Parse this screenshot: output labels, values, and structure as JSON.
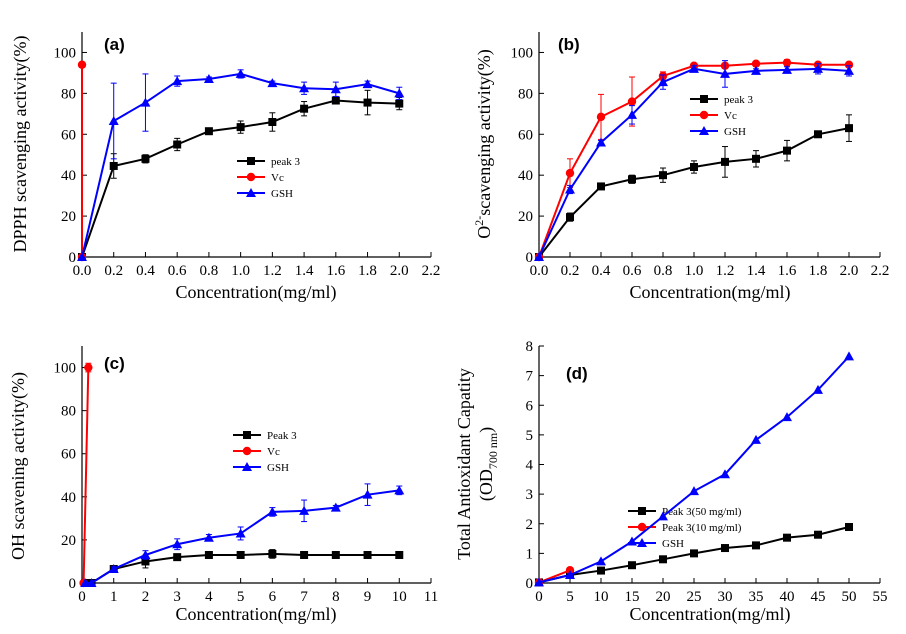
{
  "colors": {
    "peak3": "#000000",
    "vc": "#ff0000",
    "gsh": "#0000ff"
  },
  "chart_data": [
    {
      "panel": "(a)",
      "type": "line",
      "xlabel": "Concentration(mg/ml)",
      "ylabel": "DPPH scavenging activity(%)",
      "xlim": [
        0,
        2.2
      ],
      "ylim": [
        0,
        110
      ],
      "xticks": [
        "0.0",
        "0.2",
        "0.4",
        "0.6",
        "0.8",
        "1.0",
        "1.2",
        "1.4",
        "1.6",
        "1.8",
        "2.0",
        "2.2"
      ],
      "yticks": [
        "0",
        "20",
        "40",
        "60",
        "80",
        "100"
      ],
      "legend_position": "center",
      "series": [
        {
          "name": "peak 3",
          "color": "#000000",
          "marker": "square",
          "x": [
            0,
            0.2,
            0.4,
            0.6,
            0.8,
            1.0,
            1.2,
            1.4,
            1.6,
            1.8,
            2.0
          ],
          "y": [
            0,
            44.5,
            48,
            55,
            61.5,
            63.5,
            66,
            72.5,
            76.5,
            75.5,
            75
          ],
          "err": [
            0,
            6,
            2,
            3,
            1,
            3,
            4.5,
            3.5,
            1.5,
            6,
            3
          ]
        },
        {
          "name": "Vc",
          "color": "#ff0000",
          "marker": "circle",
          "x": [
            0,
            0
          ],
          "y": [
            0,
            94
          ],
          "err": [
            0,
            0
          ]
        },
        {
          "name": "GSH",
          "color": "#0000ff",
          "marker": "triangle",
          "x": [
            0,
            0.2,
            0.4,
            0.6,
            0.8,
            1.0,
            1.2,
            1.4,
            1.6,
            1.8,
            2.0
          ],
          "y": [
            0,
            66.5,
            75.5,
            86,
            87,
            89.5,
            85,
            82.5,
            82,
            84.5,
            80
          ],
          "err": [
            0,
            18.5,
            14,
            2.5,
            1,
            2,
            1,
            3,
            3.5,
            1.5,
            3
          ]
        }
      ]
    },
    {
      "panel": "(b)",
      "type": "line",
      "xlabel": "Concentration(mg/ml)",
      "ylabel": "O2-scavenging activity(%)",
      "xlim": [
        0,
        2.2
      ],
      "ylim": [
        0,
        110
      ],
      "xticks": [
        "0.0",
        "0.2",
        "0.4",
        "0.6",
        "0.8",
        "1.0",
        "1.2",
        "1.4",
        "1.6",
        "1.8",
        "2.0",
        "2.2"
      ],
      "yticks": [
        "0",
        "20",
        "40",
        "60",
        "80",
        "100"
      ],
      "legend_position": "center-right",
      "series": [
        {
          "name": "peak 3",
          "color": "#000000",
          "marker": "square",
          "x": [
            0,
            0.2,
            0.4,
            0.6,
            0.8,
            1.0,
            1.2,
            1.4,
            1.6,
            1.8,
            2.0
          ],
          "y": [
            0,
            19.5,
            34.5,
            38,
            40,
            44,
            46.5,
            48,
            52,
            60,
            63
          ],
          "err": [
            0,
            2,
            1,
            2,
            3.5,
            3,
            7.5,
            4,
            5,
            1,
            6.5
          ]
        },
        {
          "name": "Vc",
          "color": "#ff0000",
          "marker": "circle",
          "x": [
            0,
            0.2,
            0.4,
            0.6,
            0.8,
            1.0,
            1.2,
            1.4,
            1.6,
            1.8,
            2.0
          ],
          "y": [
            0,
            41,
            68.5,
            76,
            88.5,
            93.5,
            93.5,
            94.5,
            95,
            94,
            94
          ],
          "err": [
            0,
            7,
            11,
            12,
            2,
            1,
            1,
            1,
            1.5,
            1,
            1
          ]
        },
        {
          "name": "GSH",
          "color": "#0000ff",
          "marker": "triangle",
          "x": [
            0,
            0.2,
            0.4,
            0.6,
            0.8,
            1.0,
            1.2,
            1.4,
            1.6,
            1.8,
            2.0
          ],
          "y": [
            0,
            33,
            56,
            69.5,
            85.5,
            92,
            89.5,
            91,
            91.5,
            92,
            91
          ],
          "err": [
            0,
            2,
            1,
            4.5,
            3.5,
            1.5,
            6.5,
            1,
            1.5,
            2.5,
            2.5
          ]
        }
      ]
    },
    {
      "panel": "(c)",
      "type": "line",
      "xlabel": "Concentration(mg/ml)",
      "ylabel": "OH scavening activity(%)",
      "xlim": [
        0,
        11
      ],
      "ylim": [
        0,
        110
      ],
      "xticks": [
        "0",
        "1",
        "2",
        "3",
        "4",
        "5",
        "6",
        "7",
        "8",
        "9",
        "10",
        "11"
      ],
      "yticks": [
        "0",
        "20",
        "40",
        "60",
        "80",
        "100"
      ],
      "legend_position": "center-right",
      "series": [
        {
          "name": "Peak 3",
          "color": "#000000",
          "marker": "square",
          "x": [
            0.1,
            0.3,
            1,
            2,
            3,
            4,
            5,
            6,
            7,
            8,
            9,
            10
          ],
          "y": [
            0,
            0,
            6.5,
            10,
            12,
            13,
            13,
            13.5,
            13,
            13,
            13,
            13
          ],
          "err": [
            0,
            0,
            1,
            3,
            1,
            1,
            1,
            2,
            1,
            1,
            1,
            1
          ]
        },
        {
          "name": "Vc",
          "color": "#ff0000",
          "marker": "circle",
          "x": [
            0.05,
            0.2
          ],
          "y": [
            0,
            100
          ],
          "err": [
            0,
            2
          ]
        },
        {
          "name": "GSH",
          "color": "#0000ff",
          "marker": "triangle",
          "x": [
            0.1,
            0.3,
            1,
            2,
            3,
            4,
            5,
            6,
            7,
            8,
            9,
            10
          ],
          "y": [
            0,
            0,
            6.5,
            13,
            18,
            21,
            23,
            33,
            33.5,
            35,
            41,
            43
          ],
          "err": [
            0,
            0,
            1,
            2,
            2.5,
            1.5,
            3,
            2,
            5,
            1,
            5,
            2
          ]
        }
      ]
    },
    {
      "panel": "(d)",
      "type": "line",
      "xlabel": "Concentration(mg/ml)",
      "ylabel": "Total Antioxidant Capatity",
      "ylabel2": "(OD",
      "ylabel2_sub": "700 nm",
      "ylabel2_end": ")",
      "xlim": [
        0,
        55
      ],
      "ylim": [
        0,
        8
      ],
      "xticks": [
        "0",
        "5",
        "10",
        "15",
        "20",
        "25",
        "30",
        "35",
        "40",
        "45",
        "50",
        "55"
      ],
      "yticks": [
        "0",
        "1",
        "2",
        "3",
        "4",
        "5",
        "6",
        "7",
        "8"
      ],
      "legend_position": "center-left",
      "series": [
        {
          "name": "Peak 3(50 mg/ml)",
          "color": "#000000",
          "marker": "square",
          "x": [
            0,
            5,
            10,
            15,
            20,
            25,
            30,
            35,
            40,
            45,
            50
          ],
          "y": [
            0.02,
            0.27,
            0.42,
            0.6,
            0.8,
            1.0,
            1.18,
            1.27,
            1.53,
            1.63,
            1.89
          ],
          "err": [
            0,
            0,
            0,
            0,
            0,
            0,
            0,
            0,
            0,
            0,
            0
          ]
        },
        {
          "name": "Peak 3(10 mg/ml)",
          "color": "#ff0000",
          "marker": "circle",
          "x": [
            0,
            5
          ],
          "y": [
            0.02,
            0.43
          ],
          "err": [
            0,
            0
          ]
        },
        {
          "name": "GSH",
          "color": "#0000ff",
          "marker": "triangle",
          "x": [
            0,
            5,
            10,
            15,
            20,
            25,
            30,
            35,
            40,
            45,
            50
          ],
          "y": [
            0.02,
            0.27,
            0.73,
            1.4,
            2.25,
            3.1,
            3.67,
            4.83,
            5.6,
            6.52,
            7.65
          ],
          "err": [
            0,
            0,
            0,
            0,
            0,
            0,
            0,
            0,
            0,
            0,
            0
          ]
        }
      ]
    }
  ]
}
